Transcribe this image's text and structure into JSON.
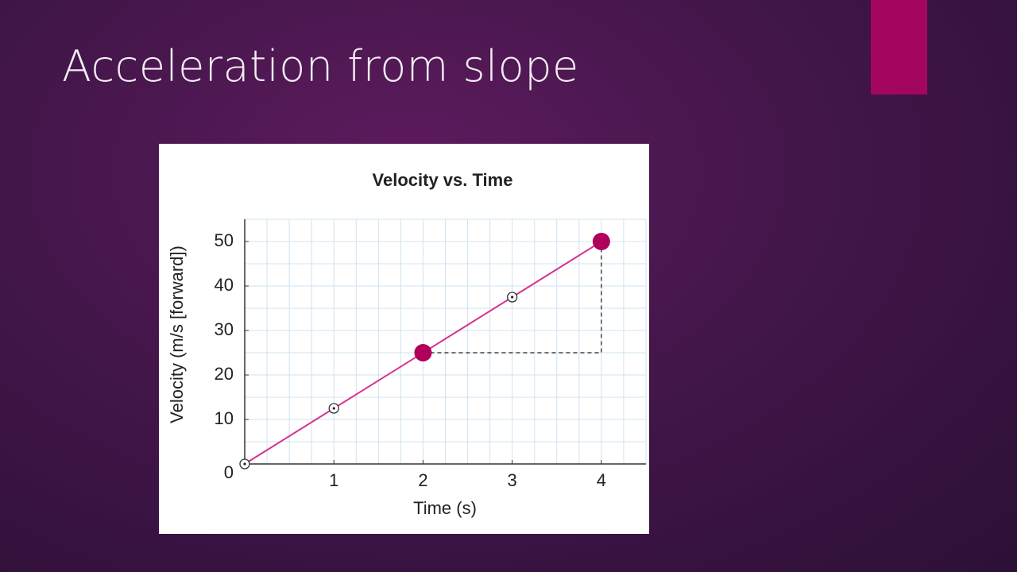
{
  "slide_title": "Acceleration from slope",
  "chart_data": {
    "type": "line",
    "title": "Velocity vs. Time",
    "x_label": "Time (s)",
    "y_label": "Velocity (m/s [forward])",
    "x": [
      0,
      1,
      2,
      3,
      4
    ],
    "values": [
      0,
      12.5,
      25,
      37.5,
      50
    ],
    "filled": [
      false,
      false,
      true,
      false,
      true
    ],
    "color": "#d6338f",
    "marker_color": "#b0005c",
    "xlim": [
      0,
      4.5
    ],
    "ylim": [
      0,
      55
    ],
    "xticks": [
      1,
      2,
      3,
      4
    ],
    "yticks": [
      0,
      10,
      20,
      30,
      40,
      50
    ],
    "grid": true,
    "minor_grid": {
      "x": 0.25,
      "y": 5
    },
    "rise_run": {
      "x": [
        2,
        4
      ],
      "y": [
        25,
        50
      ]
    }
  }
}
